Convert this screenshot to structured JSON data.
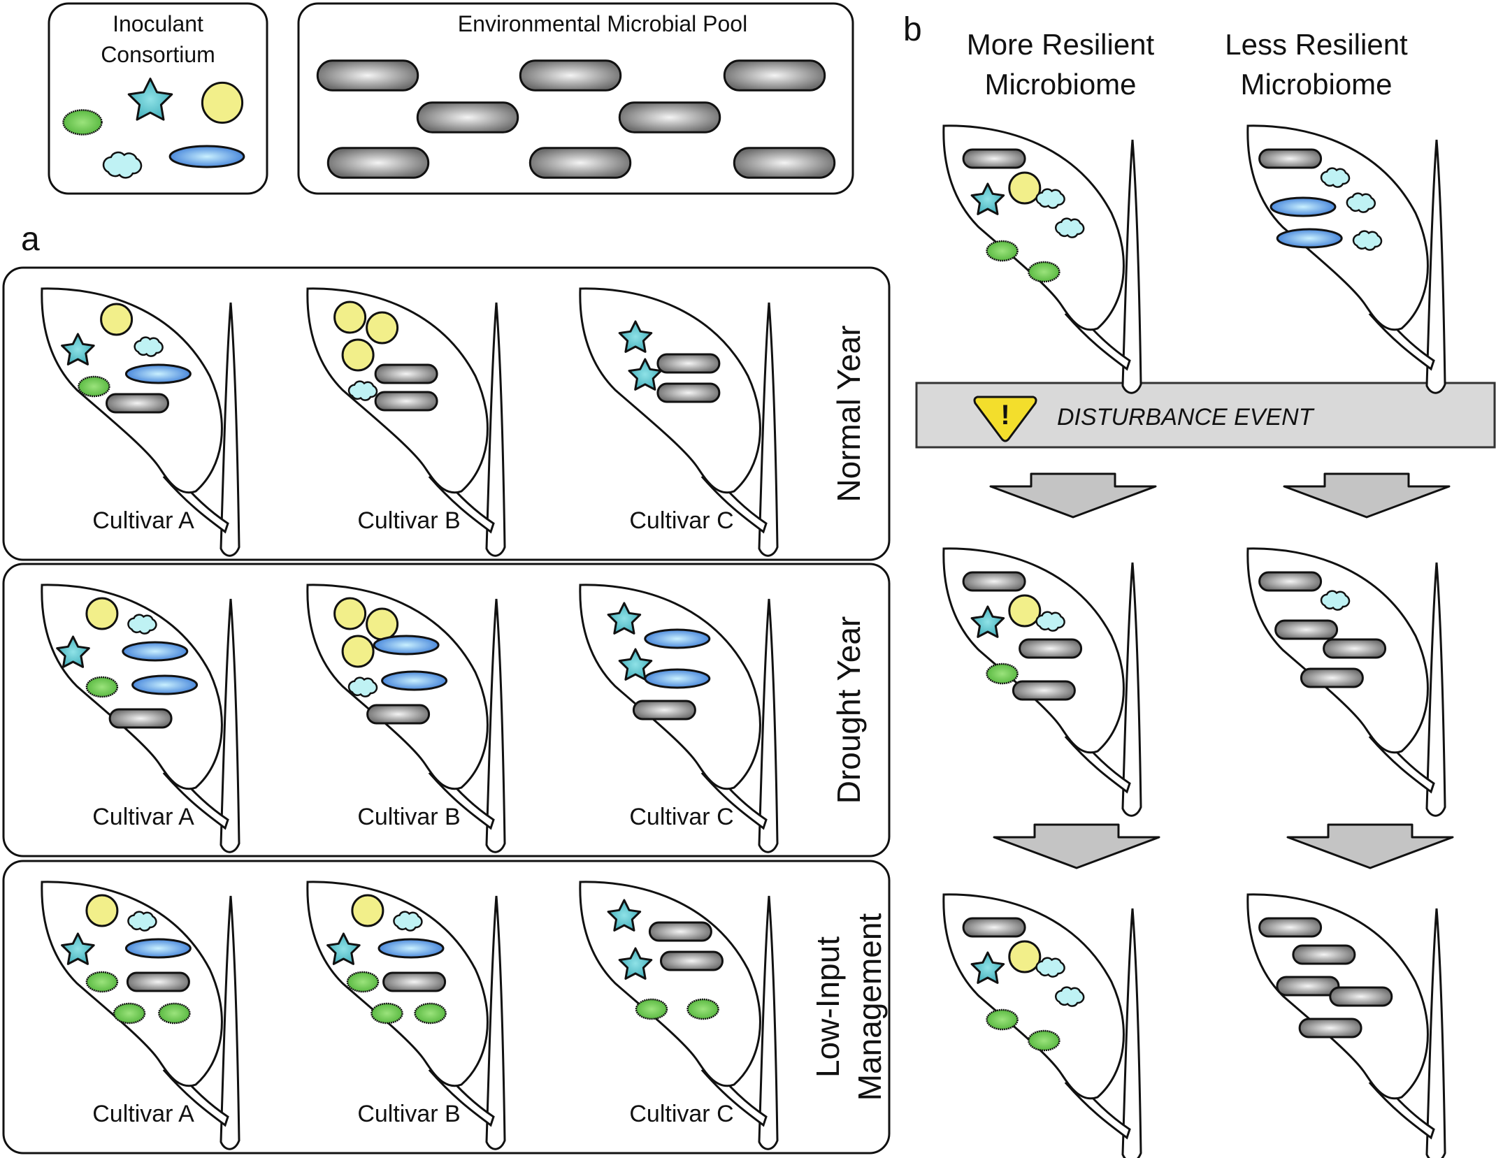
{
  "legend": {
    "inoculant_title_line1": "Inoculant",
    "inoculant_title_line2": "Consortium",
    "pool_title": "Environmental Microbial Pool"
  },
  "panel_a": {
    "label": "a",
    "rows": [
      {
        "condition_lines": [
          "Normal Year"
        ],
        "cultivars": [
          {
            "label": "Cultivar A",
            "microbes": [
              [
                "circle",
                0.42,
                0.13
              ],
              [
                "star",
                0.18,
                0.28
              ],
              [
                "cloud",
                0.62,
                0.26
              ],
              [
                "oval",
                0.28,
                0.45
              ],
              [
                "ellipse",
                0.68,
                0.39
              ],
              [
                "rod",
                0.55,
                0.53
              ]
            ]
          },
          {
            "label": "Cultivar B",
            "microbes": [
              [
                "circle",
                0.22,
                0.12
              ],
              [
                "circle",
                0.42,
                0.17
              ],
              [
                "circle",
                0.27,
                0.3
              ],
              [
                "cloud",
                0.3,
                0.47
              ],
              [
                "rod",
                0.57,
                0.39
              ],
              [
                "rod",
                0.57,
                0.52
              ]
            ]
          },
          {
            "label": "Cultivar C",
            "microbes": [
              [
                "star",
                0.3,
                0.22
              ],
              [
                "star",
                0.36,
                0.4
              ],
              [
                "rod",
                0.63,
                0.34
              ],
              [
                "rod",
                0.63,
                0.48
              ]
            ]
          }
        ]
      },
      {
        "condition_lines": [
          "Drought Year"
        ],
        "cultivars": [
          {
            "label": "Cultivar A",
            "microbes": [
              [
                "circle",
                0.33,
                0.12
              ],
              [
                "cloud",
                0.58,
                0.17
              ],
              [
                "star",
                0.15,
                0.31
              ],
              [
                "ellipse",
                0.66,
                0.3
              ],
              [
                "oval",
                0.33,
                0.47
              ],
              [
                "ellipse",
                0.72,
                0.46
              ],
              [
                "rod",
                0.57,
                0.62
              ]
            ]
          },
          {
            "label": "Cultivar B",
            "microbes": [
              [
                "circle",
                0.22,
                0.12
              ],
              [
                "circle",
                0.42,
                0.17
              ],
              [
                "circle",
                0.27,
                0.3
              ],
              [
                "ellipse",
                0.57,
                0.27
              ],
              [
                "cloud",
                0.3,
                0.47
              ],
              [
                "ellipse",
                0.62,
                0.44
              ],
              [
                "rod",
                0.52,
                0.6
              ]
            ]
          },
          {
            "label": "Cultivar C",
            "microbes": [
              [
                "star",
                0.23,
                0.15
              ],
              [
                "ellipse",
                0.56,
                0.24
              ],
              [
                "star",
                0.3,
                0.37
              ],
              [
                "ellipse",
                0.56,
                0.43
              ],
              [
                "rod",
                0.48,
                0.58
              ]
            ]
          }
        ]
      },
      {
        "condition_lines": [
          "Low-Input",
          "Management"
        ],
        "cultivars": [
          {
            "label": "Cultivar A",
            "microbes": [
              [
                "circle",
                0.33,
                0.12
              ],
              [
                "cloud",
                0.58,
                0.17
              ],
              [
                "star",
                0.18,
                0.31
              ],
              [
                "ellipse",
                0.68,
                0.3
              ],
              [
                "oval",
                0.33,
                0.46
              ],
              [
                "rod",
                0.68,
                0.46
              ],
              [
                "oval",
                0.5,
                0.61
              ],
              [
                "oval",
                0.78,
                0.61
              ]
            ]
          },
          {
            "label": "Cultivar B",
            "microbes": [
              [
                "circle",
                0.33,
                0.12
              ],
              [
                "cloud",
                0.58,
                0.17
              ],
              [
                "star",
                0.18,
                0.31
              ],
              [
                "ellipse",
                0.6,
                0.3
              ],
              [
                "oval",
                0.3,
                0.46
              ],
              [
                "rod",
                0.62,
                0.46
              ],
              [
                "oval",
                0.45,
                0.61
              ],
              [
                "oval",
                0.72,
                0.61
              ]
            ]
          },
          {
            "label": "Cultivar C",
            "microbes": [
              [
                "star",
                0.23,
                0.15
              ],
              [
                "rod",
                0.58,
                0.22
              ],
              [
                "rod",
                0.65,
                0.36
              ],
              [
                "star",
                0.3,
                0.38
              ],
              [
                "oval",
                0.4,
                0.59
              ],
              [
                "oval",
                0.72,
                0.59
              ]
            ]
          }
        ]
      }
    ]
  },
  "panel_b": {
    "label": "b",
    "columns": [
      {
        "title_line1": "More Resilient",
        "title_line2": "Microbiome",
        "stages": [
          [
            [
              "rod",
              0.27,
              0.14
            ],
            [
              "circle",
              0.46,
              0.28
            ],
            [
              "star",
              0.23,
              0.34
            ],
            [
              "cloud",
              0.62,
              0.33
            ],
            [
              "cloud",
              0.74,
              0.47
            ],
            [
              "oval",
              0.32,
              0.58
            ],
            [
              "oval",
              0.58,
              0.68
            ]
          ],
          [
            [
              "rod",
              0.27,
              0.14
            ],
            [
              "circle",
              0.46,
              0.28
            ],
            [
              "star",
              0.23,
              0.34
            ],
            [
              "cloud",
              0.62,
              0.33
            ],
            [
              "rod",
              0.62,
              0.46
            ],
            [
              "oval",
              0.32,
              0.58
            ],
            [
              "rod",
              0.58,
              0.66
            ]
          ],
          [
            [
              "rod",
              0.27,
              0.14
            ],
            [
              "circle",
              0.46,
              0.28
            ],
            [
              "star",
              0.23,
              0.34
            ],
            [
              "cloud",
              0.62,
              0.33
            ],
            [
              "cloud",
              0.74,
              0.47
            ],
            [
              "oval",
              0.32,
              0.58
            ],
            [
              "oval",
              0.58,
              0.68
            ]
          ]
        ]
      },
      {
        "title_line1": "Less Resilient",
        "title_line2": "Microbiome",
        "stages": [
          [
            [
              "rod",
              0.22,
              0.14
            ],
            [
              "cloud",
              0.5,
              0.23
            ],
            [
              "ellipse",
              0.3,
              0.37
            ],
            [
              "cloud",
              0.66,
              0.35
            ],
            [
              "ellipse",
              0.34,
              0.52
            ],
            [
              "cloud",
              0.7,
              0.53
            ]
          ],
          [
            [
              "rod",
              0.22,
              0.14
            ],
            [
              "cloud",
              0.5,
              0.23
            ],
            [
              "rod",
              0.32,
              0.37
            ],
            [
              "rod",
              0.62,
              0.46
            ],
            [
              "rod",
              0.48,
              0.6
            ]
          ],
          [
            [
              "rod",
              0.22,
              0.14
            ],
            [
              "rod",
              0.43,
              0.27
            ],
            [
              "rod",
              0.33,
              0.42
            ],
            [
              "rod",
              0.66,
              0.47
            ],
            [
              "rod",
              0.47,
              0.62
            ]
          ]
        ]
      }
    ],
    "disturbance_label": "DISTURBANCE EVENT",
    "warning_symbol": "!"
  },
  "colors": {
    "circle": "#f2ef8a",
    "star": "#5cc7d0",
    "cloud": "#bff2f4",
    "oval": "#6fcd4e",
    "ellipse": "#5aa7e8",
    "rod": "#9a9a9a",
    "warning": "#f3de2c",
    "banner": "#d9d9d9",
    "arrow": "#c4c4c4"
  },
  "icons": [
    "warning-triangle-icon",
    "down-arrow-icon",
    "leaf-icon"
  ]
}
